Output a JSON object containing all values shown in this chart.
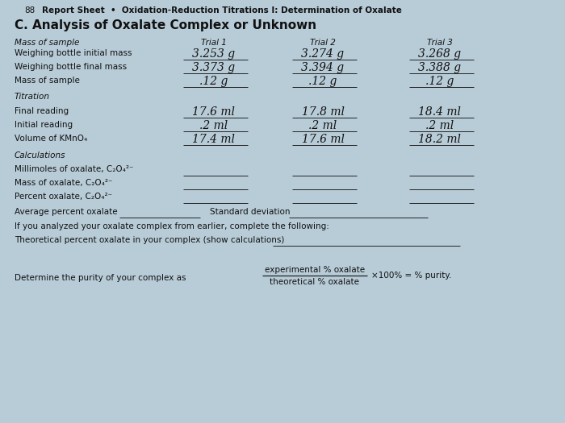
{
  "bg_color": "#b8ccd8",
  "page_num": "88",
  "header": "Report Sheet  •  Oxidation-Reduction Titrations I: Determination of Oxalate",
  "section_title": "C. Analysis of Oxalate Complex or Unknown",
  "labels": {
    "mass_of_sample": "Mass of sample",
    "wb_initial": "Weighing bottle initial mass",
    "wb_final": "Weighing bottle final mass",
    "mass_sample": "Mass of sample",
    "titration": "Titration",
    "final_reading": "Final reading",
    "initial_reading": "Initial reading",
    "volume_kmno4": "Volume of KMnO₄",
    "calculations": "Calculations",
    "mmol_oxalate": "Millimoles of oxalate, C₂O₄²⁻",
    "mass_oxalate": "Mass of oxalate, C₂O₄²⁻",
    "percent_oxalate": "Percent oxalate, C₂O₄²⁻",
    "avg_percent": "Average percent oxalate",
    "std_dev": "Standard deviation",
    "if_you": "If you analyzed your oxalate complex from earlier, complete the following:",
    "theoretical": "Theoretical percent oxalate in your complex (show calculations)",
    "determine": "Determine the purity of your complex as"
  },
  "trial_headers": [
    "Trial 1",
    "Trial 2",
    "Trial 3"
  ],
  "data": {
    "wb_initial": [
      "3.253 g",
      "3.274 g",
      "3.268 g"
    ],
    "wb_final": [
      "3.373 g",
      "3.394 g",
      "3.388 g"
    ],
    "mass_sample": [
      ".12 g",
      ".12 g",
      ".12 g"
    ],
    "final_reading": [
      "17.6 ml",
      "17.8 ml",
      "18.4 ml"
    ],
    "initial_reading": [
      ".2 ml",
      ".2 ml",
      ".2 ml"
    ],
    "volume_kmno4": [
      "17.4 ml",
      "17.6 ml",
      "18.2 ml"
    ]
  },
  "fraction_num": "experimental % oxalate",
  "fraction_den": "theoretical % oxalate",
  "fraction_suffix": "×100% = % purity."
}
